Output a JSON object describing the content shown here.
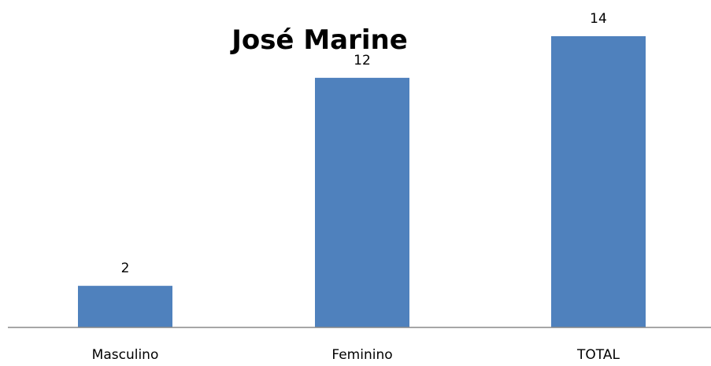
{
  "chart_data": {
    "type": "bar",
    "title": "José Marine",
    "categories": [
      "Masculino",
      "Feminino",
      "TOTAL"
    ],
    "values": [
      2,
      12,
      14
    ],
    "ylim": [
      0,
      14
    ],
    "grid": false,
    "legend": "none",
    "data_labels": true,
    "colors": {
      "bar": "#4F81BD",
      "axis": "#888888",
      "text": "#000000"
    }
  }
}
